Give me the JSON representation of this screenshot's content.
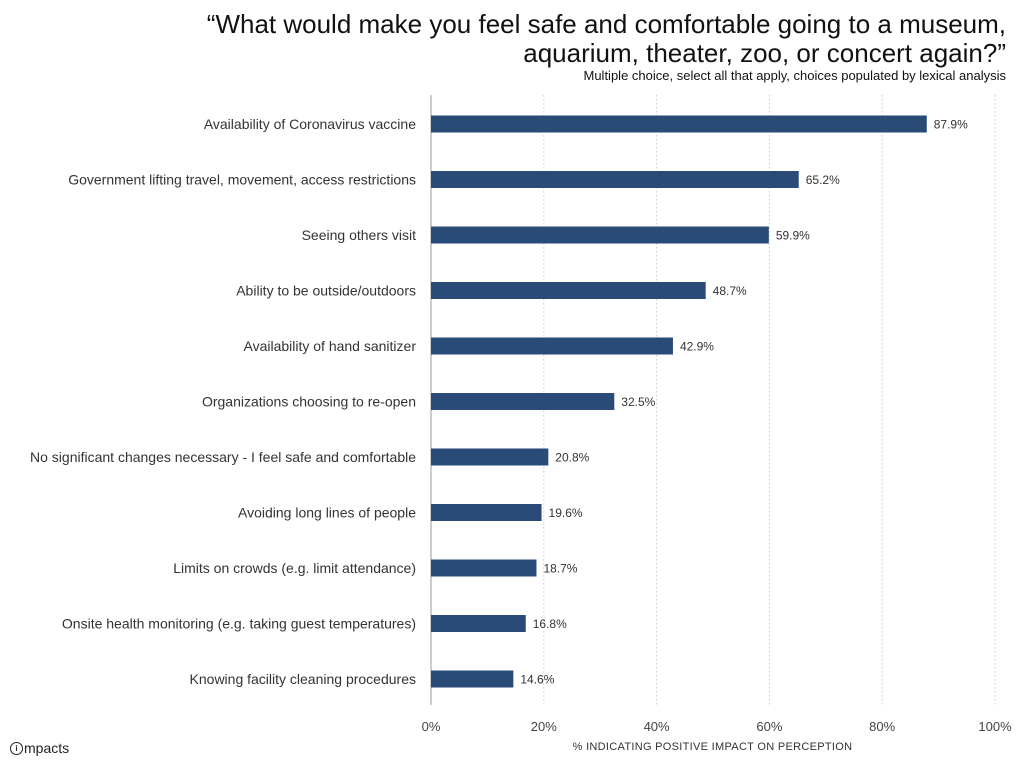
{
  "header": {
    "title_line1": "“What would make you feel safe and comfortable going to a museum,",
    "title_line2": "aquarium, theater, zoo, or concert again?”",
    "subtitle": "Multiple choice, select all that apply, choices populated by lexical analysis"
  },
  "footer": {
    "logo_text": "mpacts",
    "logo_mark": "i"
  },
  "colors": {
    "bar": "#2a4a78",
    "grid": "#c8c8c8",
    "axis": "#999999"
  },
  "chart_data": {
    "type": "bar",
    "orientation": "horizontal",
    "title": "“What would make you feel safe and comfortable going to a museum, aquarium, theater, zoo, or concert again?”",
    "subtitle": "Multiple choice, select all that apply, choices populated by lexical analysis",
    "xlabel": "% INDICATING POSITIVE IMPACT ON PERCEPTION",
    "ylabel": "",
    "xlim": [
      0,
      100
    ],
    "xticks": [
      "0%",
      "20%",
      "40%",
      "60%",
      "80%",
      "100%"
    ],
    "grid": "vertical-dotted",
    "categories": [
      "Availability of Coronavirus vaccine",
      "Government lifting travel, movement, access restrictions",
      "Seeing others visit",
      "Ability to be outside/outdoors",
      "Availability of hand sanitizer",
      "Organizations choosing to re-open",
      "No significant changes necessary - I feel safe and comfortable",
      "Avoiding long lines of people",
      "Limits on crowds (e.g. limit attendance)",
      "Onsite health monitoring (e.g. taking guest temperatures)",
      "Knowing facility cleaning procedures"
    ],
    "values": [
      87.9,
      65.2,
      59.9,
      48.7,
      42.9,
      32.5,
      20.8,
      19.6,
      18.7,
      16.8,
      14.6
    ],
    "data_labels": [
      "87.9%",
      "65.2%",
      "59.9%",
      "48.7%",
      "42.9%",
      "32.5%",
      "20.8%",
      "19.6%",
      "18.7%",
      "16.8%",
      "14.6%"
    ]
  }
}
